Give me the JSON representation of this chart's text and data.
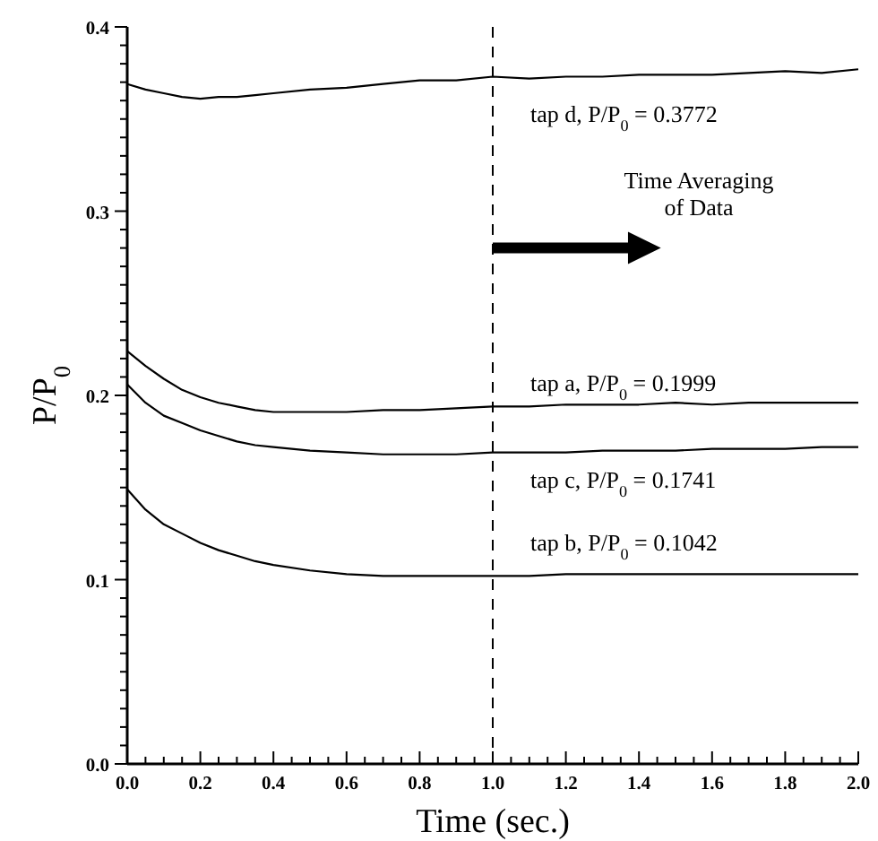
{
  "chart_data": {
    "type": "line",
    "xlabel": "Time (sec.)",
    "ylabel": "P/P$_{0}$",
    "xlim": [
      0,
      2
    ],
    "ylim": [
      0,
      0.4
    ],
    "xticks": [
      {
        "value": 0,
        "label": "0.0"
      },
      {
        "value": 0.05,
        "label": null
      },
      {
        "value": 0.1,
        "label": null
      },
      {
        "value": 0.15,
        "label": null
      },
      {
        "value": 0.2,
        "label": "0.2"
      },
      {
        "value": 0.25,
        "label": null
      },
      {
        "value": 0.3,
        "label": null
      },
      {
        "value": 0.35,
        "label": null
      },
      {
        "value": 0.4,
        "label": "0.4"
      },
      {
        "value": 0.45,
        "label": null
      },
      {
        "value": 0.5,
        "label": null
      },
      {
        "value": 0.55,
        "label": null
      },
      {
        "value": 0.6,
        "label": "0.6"
      },
      {
        "value": 0.65,
        "label": null
      },
      {
        "value": 0.7,
        "label": null
      },
      {
        "value": 0.75,
        "label": null
      },
      {
        "value": 0.8,
        "label": "0.8"
      },
      {
        "value": 0.85,
        "label": null
      },
      {
        "value": 0.9,
        "label": null
      },
      {
        "value": 0.95,
        "label": null
      },
      {
        "value": 1,
        "label": "1.0"
      },
      {
        "value": 1.05,
        "label": null
      },
      {
        "value": 1.1,
        "label": null
      },
      {
        "value": 1.15,
        "label": null
      },
      {
        "value": 1.2,
        "label": "1.2"
      },
      {
        "value": 1.25,
        "label": null
      },
      {
        "value": 1.3,
        "label": null
      },
      {
        "value": 1.35,
        "label": null
      },
      {
        "value": 1.4,
        "label": "1.4"
      },
      {
        "value": 1.45,
        "label": null
      },
      {
        "value": 1.5,
        "label": null
      },
      {
        "value": 1.55,
        "label": null
      },
      {
        "value": 1.6,
        "label": "1.6"
      },
      {
        "value": 1.65,
        "label": null
      },
      {
        "value": 1.7,
        "label": null
      },
      {
        "value": 1.75,
        "label": null
      },
      {
        "value": 1.8,
        "label": "1.8"
      },
      {
        "value": 1.85,
        "label": null
      },
      {
        "value": 1.9,
        "label": null
      },
      {
        "value": 1.95,
        "label": null
      },
      {
        "value": 2,
        "label": "2.0"
      }
    ],
    "yticks": [
      {
        "value": 0,
        "label": "0.0"
      },
      {
        "value": 0.01,
        "label": null
      },
      {
        "value": 0.02,
        "label": null
      },
      {
        "value": 0.03,
        "label": null
      },
      {
        "value": 0.04,
        "label": null
      },
      {
        "value": 0.05,
        "label": null
      },
      {
        "value": 0.06,
        "label": null
      },
      {
        "value": 0.07,
        "label": null
      },
      {
        "value": 0.08,
        "label": null
      },
      {
        "value": 0.09,
        "label": null
      },
      {
        "value": 0.1,
        "label": "0.1"
      },
      {
        "value": 0.11,
        "label": null
      },
      {
        "value": 0.12,
        "label": null
      },
      {
        "value": 0.13,
        "label": null
      },
      {
        "value": 0.14,
        "label": null
      },
      {
        "value": 0.15,
        "label": null
      },
      {
        "value": 0.16,
        "label": null
      },
      {
        "value": 0.17,
        "label": null
      },
      {
        "value": 0.18,
        "label": null
      },
      {
        "value": 0.19,
        "label": null
      },
      {
        "value": 0.2,
        "label": "0.2"
      },
      {
        "value": 0.21,
        "label": null
      },
      {
        "value": 0.22,
        "label": null
      },
      {
        "value": 0.23,
        "label": null
      },
      {
        "value": 0.24,
        "label": null
      },
      {
        "value": 0.25,
        "label": null
      },
      {
        "value": 0.26,
        "label": null
      },
      {
        "value": 0.27,
        "label": null
      },
      {
        "value": 0.28,
        "label": null
      },
      {
        "value": 0.29,
        "label": null
      },
      {
        "value": 0.3,
        "label": "0.3"
      },
      {
        "value": 0.31,
        "label": null
      },
      {
        "value": 0.32,
        "label": null
      },
      {
        "value": 0.33,
        "label": null
      },
      {
        "value": 0.34,
        "label": null
      },
      {
        "value": 0.35,
        "label": null
      },
      {
        "value": 0.36,
        "label": null
      },
      {
        "value": 0.37,
        "label": null
      },
      {
        "value": 0.38,
        "label": null
      },
      {
        "value": 0.39,
        "label": null
      },
      {
        "value": 0.4,
        "label": "0.4"
      }
    ],
    "x": [
      0,
      0.05,
      0.1,
      0.15,
      0.2,
      0.25,
      0.3,
      0.35,
      0.4,
      0.5,
      0.6,
      0.7,
      0.8,
      0.9,
      1.0,
      1.1,
      1.2,
      1.3,
      1.4,
      1.5,
      1.6,
      1.7,
      1.8,
      1.9,
      2.0
    ],
    "series": [
      {
        "color": "#000000",
        "values": [
          0.369,
          0.366,
          0.364,
          0.362,
          0.361,
          0.362,
          0.362,
          0.363,
          0.364,
          0.366,
          0.367,
          0.369,
          0.371,
          0.371,
          0.373,
          0.372,
          0.373,
          0.373,
          0.374,
          0.374,
          0.374,
          0.375,
          0.376,
          0.375,
          0.377
        ]
      },
      {
        "color": "#000000",
        "values": [
          0.224,
          0.216,
          0.209,
          0.203,
          0.199,
          0.196,
          0.194,
          0.192,
          0.191,
          0.191,
          0.191,
          0.192,
          0.192,
          0.193,
          0.194,
          0.194,
          0.195,
          0.195,
          0.195,
          0.196,
          0.195,
          0.196,
          0.196,
          0.196,
          0.196
        ]
      },
      {
        "color": "#000000",
        "values": [
          0.206,
          0.196,
          0.189,
          0.185,
          0.181,
          0.178,
          0.175,
          0.173,
          0.172,
          0.17,
          0.169,
          0.168,
          0.168,
          0.168,
          0.169,
          0.169,
          0.169,
          0.17,
          0.17,
          0.17,
          0.171,
          0.171,
          0.171,
          0.172,
          0.172
        ]
      },
      {
        "color": "#000000",
        "values": [
          0.149,
          0.138,
          0.13,
          0.125,
          0.12,
          0.116,
          0.113,
          0.11,
          0.108,
          0.105,
          0.103,
          0.102,
          0.102,
          0.102,
          0.102,
          0.102,
          0.103,
          0.103,
          0.103,
          0.103,
          0.103,
          0.103,
          0.103,
          0.103,
          0.103
        ]
      }
    ],
    "marker": "none",
    "line_style": "solid",
    "grid": false,
    "ref_lines": [
      {
        "axis": "x",
        "value": 1.0,
        "line_style": "dashed",
        "color": "#000000"
      }
    ],
    "annotations": [
      "tap d, P/P$_{0}$ = 0.3772",
      "tap a, P/P$_{0}$ = 0.1999",
      "tap c, P/P$_{0}$ = 0.1741",
      "tap b, P/P$_{0}$ = 0.1042",
      "Time Averaging\nof Data"
    ]
  }
}
